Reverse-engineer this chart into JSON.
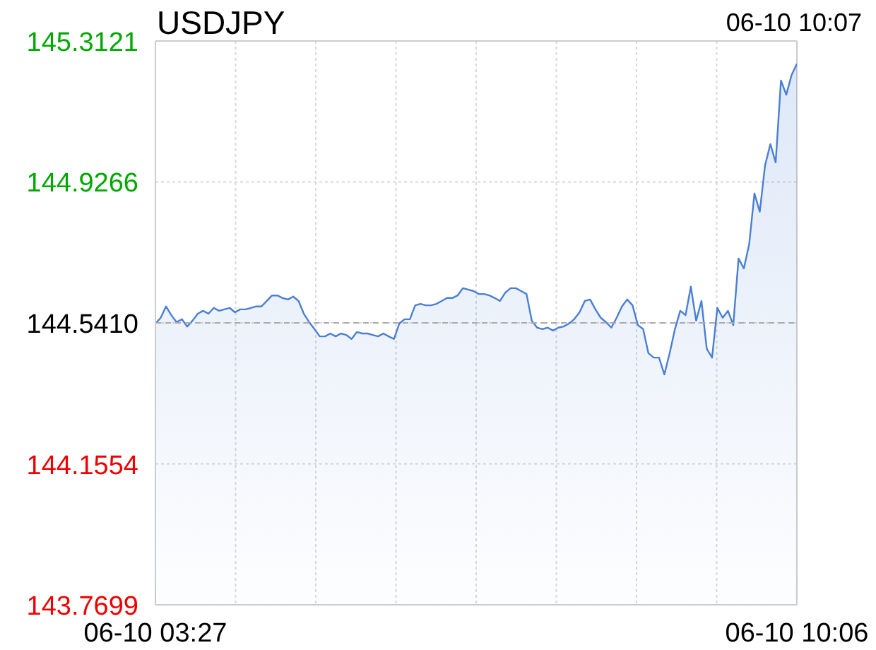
{
  "chart_data": {
    "type": "area",
    "title": "USDJPY",
    "annotations": [
      "06-10 10:07"
    ],
    "categories": [
      "06-10 03:27",
      null,
      null,
      null,
      null,
      null,
      null,
      null,
      null,
      null,
      null,
      null,
      null,
      null,
      null,
      null,
      null,
      null,
      null,
      null,
      null,
      null,
      null,
      null,
      null,
      null,
      null,
      null,
      null,
      null,
      null,
      null,
      null,
      null,
      null,
      null,
      null,
      null,
      null,
      null,
      null,
      null,
      null,
      null,
      null,
      null,
      null,
      null,
      null,
      null,
      null,
      null,
      null,
      null,
      null,
      null,
      null,
      null,
      null,
      null,
      null,
      null,
      null,
      null,
      null,
      null,
      null,
      null,
      null,
      null,
      null,
      null,
      null,
      null,
      null,
      null,
      null,
      null,
      null,
      null,
      null,
      null,
      null,
      null,
      null,
      null,
      null,
      null,
      null,
      null,
      null,
      null,
      null,
      null,
      null,
      null,
      null,
      null,
      null,
      null,
      null,
      null,
      null,
      null,
      null,
      null,
      null,
      null,
      null,
      null,
      null,
      null,
      null,
      null,
      null,
      null,
      null,
      null,
      null,
      null,
      null,
      "06-10 10:06"
    ],
    "series": [
      {
        "color": "#4a7fd4",
        "values": [
          144.539,
          144.555,
          144.586,
          144.562,
          144.543,
          144.551,
          144.531,
          144.547,
          144.566,
          144.574,
          144.566,
          144.582,
          144.574,
          144.578,
          144.582,
          144.57,
          144.578,
          144.578,
          144.582,
          144.586,
          144.586,
          144.601,
          144.616,
          144.616,
          144.609,
          144.605,
          144.613,
          144.601,
          144.566,
          144.543,
          144.524,
          144.504,
          144.504,
          144.512,
          144.504,
          144.512,
          144.508,
          144.497,
          144.516,
          144.512,
          144.512,
          144.508,
          144.504,
          144.512,
          144.504,
          144.497,
          144.539,
          144.551,
          144.551,
          144.589,
          144.593,
          144.589,
          144.589,
          144.593,
          144.601,
          144.609,
          144.609,
          144.616,
          144.636,
          144.632,
          144.628,
          144.62,
          144.62,
          144.616,
          144.609,
          144.601,
          144.624,
          144.636,
          144.636,
          144.628,
          144.62,
          144.547,
          144.528,
          144.524,
          144.528,
          144.52,
          144.528,
          144.531,
          144.539,
          144.551,
          144.57,
          144.601,
          144.605,
          144.578,
          144.555,
          144.543,
          144.528,
          144.555,
          144.586,
          144.605,
          144.589,
          144.535,
          144.524,
          144.458,
          144.446,
          144.446,
          144.4,
          144.458,
          144.524,
          144.574,
          144.562,
          144.64,
          144.547,
          144.601,
          144.47,
          144.446,
          144.582,
          144.555,
          144.574,
          144.535,
          144.717,
          144.69,
          144.756,
          144.895,
          144.845,
          144.972,
          145.03,
          144.98,
          145.204,
          145.165,
          145.219,
          145.25
        ]
      }
    ],
    "ylim": [
      143.7699,
      145.3121
    ],
    "yticks": [
      {
        "value": 143.7699,
        "label": "143.7699"
      },
      {
        "value": 144.1554,
        "label": "144.1554"
      },
      {
        "value": 144.541,
        "label": "144.5410"
      },
      {
        "value": 144.9266,
        "label": "144.9266"
      },
      {
        "value": 145.3121,
        "label": "145.3121"
      }
    ],
    "ref_lines": [
      {
        "axis": "y",
        "value": 144.541,
        "color": "#aaaaaa",
        "line_style": "dashed"
      }
    ],
    "grid": true,
    "legend": false
  }
}
